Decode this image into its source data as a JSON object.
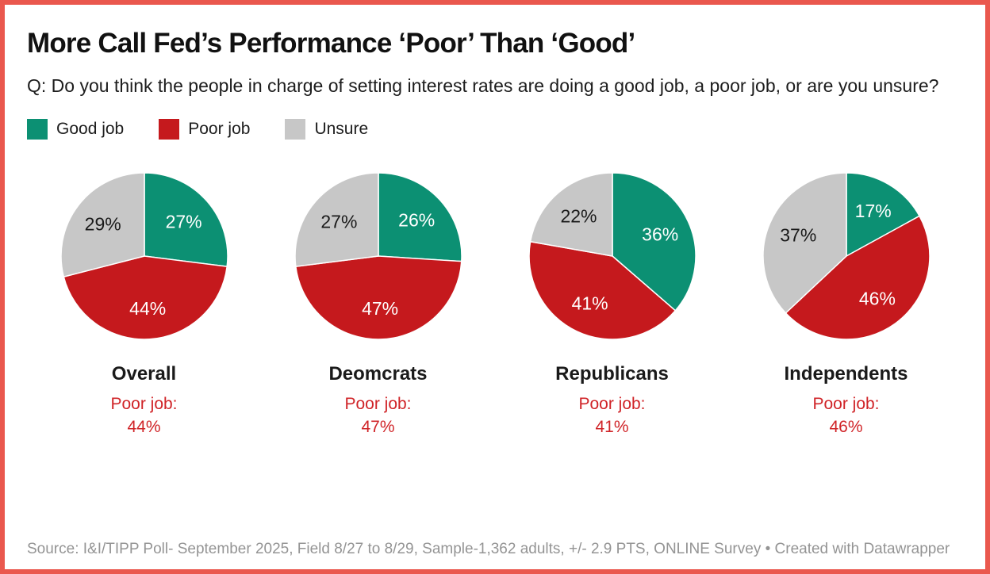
{
  "header": {
    "title": "More Call Fed’s Performance ‘Poor’ Than ‘Good’",
    "question": "Q: Do you think the people in charge of setting interest rates are doing a good job, a poor job, or are you unsure?"
  },
  "colors": {
    "good": "#0c9073",
    "poor": "#c5191d",
    "unsure": "#c7c7c7",
    "frame_border": "#ea584e",
    "annotation_red": "#d02428",
    "footer_gray": "#949494",
    "slice_divider": "#ffffff"
  },
  "legend": {
    "items": [
      {
        "label": "Good job",
        "color": "#0c9073"
      },
      {
        "label": "Poor job",
        "color": "#c5191d"
      },
      {
        "label": "Unsure",
        "color": "#c7c7c7"
      }
    ]
  },
  "chart_data": {
    "type": "pie",
    "title": "More Call Fed’s Performance ‘Poor’ Than ‘Good’",
    "series_labels": [
      "Good job",
      "Poor job",
      "Unsure"
    ],
    "slice_colors": [
      "#0c9073",
      "#c5191d",
      "#c7c7c7"
    ],
    "slice_label_text_colors": [
      "#ffffff",
      "#ffffff",
      "#1a1a1a"
    ],
    "start_angle_deg": 0,
    "direction": "clockwise",
    "pies": [
      {
        "category": "Overall",
        "values": [
          27,
          44,
          29
        ],
        "slice_labels": [
          "27%",
          "44%",
          "29%"
        ],
        "annotation_label": "Poor job:",
        "annotation_value": "44%"
      },
      {
        "category": "Deomcrats",
        "values": [
          26,
          47,
          27
        ],
        "slice_labels": [
          "26%",
          "47%",
          "27%"
        ],
        "annotation_label": "Poor job:",
        "annotation_value": "47%"
      },
      {
        "category": "Republicans",
        "values": [
          36,
          41,
          22
        ],
        "slice_labels": [
          "36%",
          "41%",
          "22%"
        ],
        "annotation_label": "Poor job:",
        "annotation_value": "41%"
      },
      {
        "category": "Independents",
        "values": [
          17,
          46,
          37
        ],
        "slice_labels": [
          "17%",
          "46%",
          "37%"
        ],
        "annotation_label": "Poor job:",
        "annotation_value": "46%"
      }
    ]
  },
  "footer": {
    "source": "Source: I&I/TIPP Poll- September 2025, Field 8/27 to 8/29, Sample-1,362 adults, +/- 2.9 PTS, ONLINE Survey • Created with Datawrapper"
  }
}
